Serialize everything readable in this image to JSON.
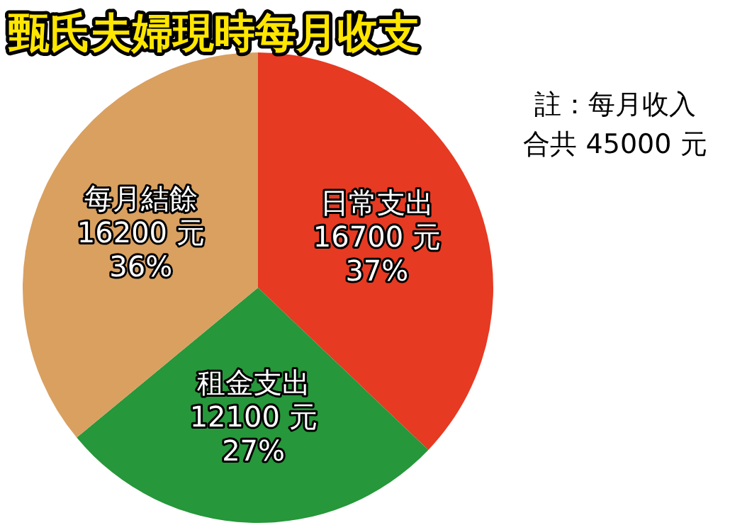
{
  "chart_data": {
    "type": "pie",
    "title": "甄氏夫婦現時每月收支",
    "categories": [
      "日常支出",
      "租金支出",
      "每月結餘"
    ],
    "values": [
      16700,
      12100,
      16200
    ],
    "value_labels": [
      "16700 元\n37%",
      "12100 元\n27%",
      "16200 元\n36%"
    ],
    "colors": [
      "#e63a22",
      "#26973a",
      "#d9a060"
    ],
    "annotations": [
      "註：每月收入",
      "合共 45000 元"
    ]
  }
}
